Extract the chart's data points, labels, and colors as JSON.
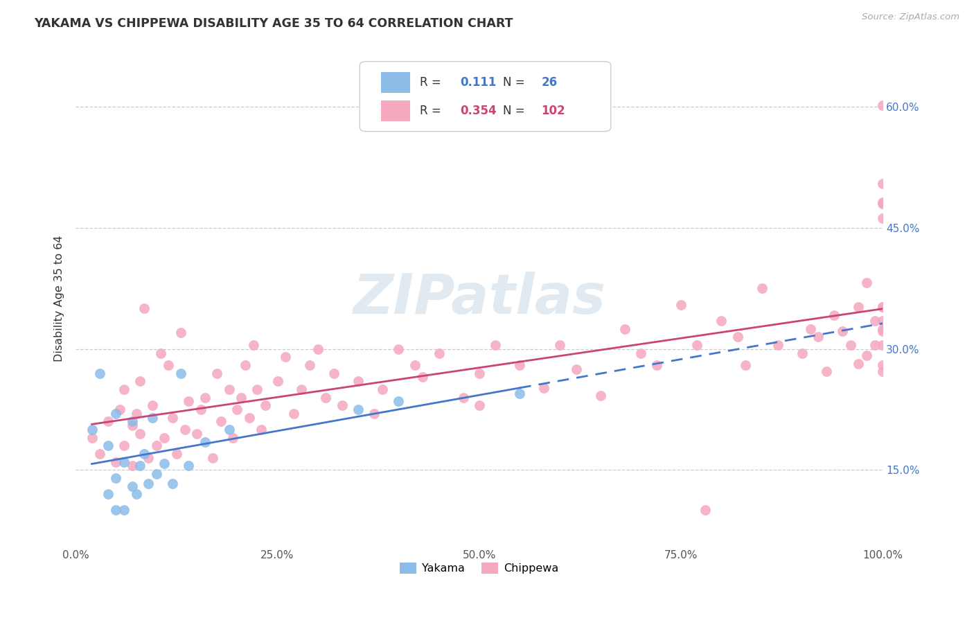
{
  "title": "YAKAMA VS CHIPPEWA DISABILITY AGE 35 TO 64 CORRELATION CHART",
  "source": "Source: ZipAtlas.com",
  "ylabel": "Disability Age 35 to 64",
  "watermark": "ZIPatlas",
  "r_yakama": 0.111,
  "n_yakama": 26,
  "r_chippewa": 0.354,
  "n_chippewa": 102,
  "xlim": [
    0.0,
    1.0
  ],
  "ylim": [
    0.055,
    0.67
  ],
  "xtick_positions": [
    0.0,
    0.25,
    0.5,
    0.75,
    1.0
  ],
  "xtick_labels": [
    "0.0%",
    "25.0%",
    "50.0%",
    "75.0%",
    "100.0%"
  ],
  "ytick_positions": [
    0.15,
    0.3,
    0.45,
    0.6
  ],
  "ytick_labels": [
    "15.0%",
    "30.0%",
    "45.0%",
    "60.0%"
  ],
  "grid_color": "#cccccc",
  "bg_color": "#ffffff",
  "yakama_color": "#8bbce8",
  "chippewa_color": "#f5a8be",
  "yakama_line_color": "#4477cc",
  "chippewa_line_color": "#cc4477",
  "right_axis_color": "#4477cc",
  "title_color": "#333333",
  "source_color": "#aaaaaa",
  "yakama_x": [
    0.02,
    0.03,
    0.04,
    0.04,
    0.05,
    0.05,
    0.05,
    0.06,
    0.06,
    0.07,
    0.07,
    0.075,
    0.08,
    0.085,
    0.09,
    0.095,
    0.1,
    0.11,
    0.12,
    0.13,
    0.14,
    0.16,
    0.19,
    0.35,
    0.4,
    0.55
  ],
  "yakama_y": [
    0.2,
    0.27,
    0.12,
    0.18,
    0.1,
    0.14,
    0.22,
    0.1,
    0.16,
    0.13,
    0.21,
    0.12,
    0.155,
    0.17,
    0.133,
    0.215,
    0.145,
    0.158,
    0.133,
    0.27,
    0.155,
    0.185,
    0.2,
    0.225,
    0.235,
    0.245
  ],
  "chippewa_x": [
    0.02,
    0.03,
    0.04,
    0.05,
    0.055,
    0.06,
    0.06,
    0.07,
    0.07,
    0.075,
    0.08,
    0.08,
    0.085,
    0.09,
    0.095,
    0.1,
    0.105,
    0.11,
    0.115,
    0.12,
    0.125,
    0.13,
    0.135,
    0.14,
    0.15,
    0.155,
    0.16,
    0.17,
    0.175,
    0.18,
    0.19,
    0.195,
    0.2,
    0.205,
    0.21,
    0.215,
    0.22,
    0.225,
    0.23,
    0.235,
    0.25,
    0.26,
    0.27,
    0.28,
    0.29,
    0.3,
    0.31,
    0.32,
    0.33,
    0.35,
    0.37,
    0.38,
    0.4,
    0.42,
    0.43,
    0.45,
    0.48,
    0.5,
    0.5,
    0.52,
    0.55,
    0.58,
    0.6,
    0.62,
    0.65,
    0.68,
    0.7,
    0.72,
    0.75,
    0.77,
    0.78,
    0.8,
    0.82,
    0.83,
    0.85,
    0.87,
    0.9,
    0.91,
    0.92,
    0.93,
    0.94,
    0.95,
    0.96,
    0.97,
    0.97,
    0.98,
    0.98,
    0.99,
    0.99,
    1.0,
    1.0,
    1.0,
    1.0,
    1.0,
    1.0,
    1.0,
    1.0,
    1.0,
    1.0,
    1.0,
    1.0,
    1.0
  ],
  "chippewa_y": [
    0.19,
    0.17,
    0.21,
    0.16,
    0.225,
    0.18,
    0.25,
    0.155,
    0.205,
    0.22,
    0.26,
    0.195,
    0.35,
    0.165,
    0.23,
    0.18,
    0.295,
    0.19,
    0.28,
    0.215,
    0.17,
    0.32,
    0.2,
    0.235,
    0.195,
    0.225,
    0.24,
    0.165,
    0.27,
    0.21,
    0.25,
    0.19,
    0.225,
    0.24,
    0.28,
    0.215,
    0.305,
    0.25,
    0.2,
    0.23,
    0.26,
    0.29,
    0.22,
    0.25,
    0.28,
    0.3,
    0.24,
    0.27,
    0.23,
    0.26,
    0.22,
    0.25,
    0.3,
    0.28,
    0.265,
    0.295,
    0.24,
    0.27,
    0.23,
    0.305,
    0.28,
    0.252,
    0.305,
    0.275,
    0.242,
    0.325,
    0.295,
    0.28,
    0.355,
    0.305,
    0.1,
    0.335,
    0.315,
    0.28,
    0.375,
    0.305,
    0.295,
    0.325,
    0.315,
    0.272,
    0.342,
    0.322,
    0.305,
    0.282,
    0.352,
    0.292,
    0.382,
    0.335,
    0.305,
    0.352,
    0.322,
    0.28,
    0.505,
    0.305,
    0.352,
    0.462,
    0.272,
    0.325,
    0.335,
    0.602,
    0.482,
    0.48
  ]
}
